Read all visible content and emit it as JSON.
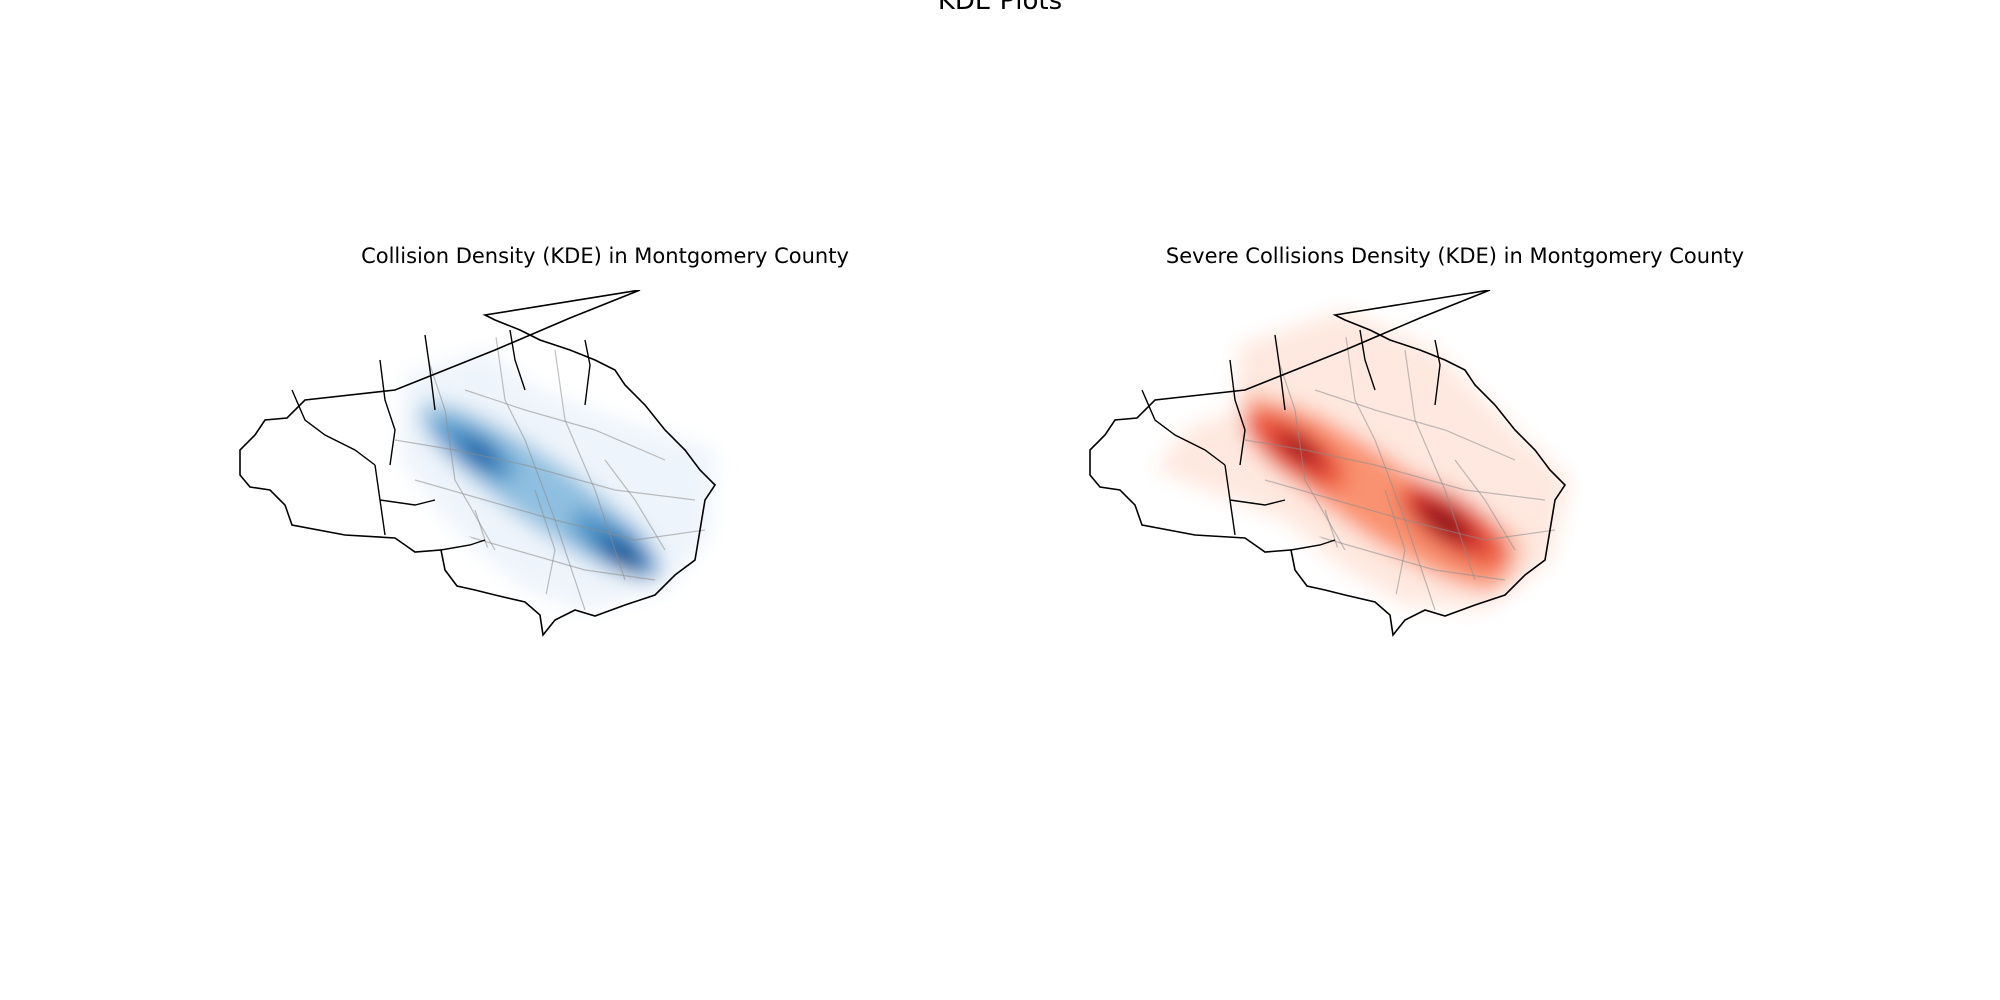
{
  "figure": {
    "suptitle": "KDE Plots"
  },
  "panels": [
    {
      "title": "Collision Density (KDE) in Montgomery County",
      "colormap": "Blues",
      "colors": [
        "#eef4fb",
        "#c9def0",
        "#8fbfe0",
        "#4d94c8",
        "#1e64a8",
        "#0a3a78"
      ]
    },
    {
      "title": "Severe Collisions Density (KDE) in Montgomery County",
      "colormap": "Reds",
      "colors": [
        "#fee8df",
        "#fcc1a8",
        "#f9926f",
        "#ec5a41",
        "#c52128",
        "#7c0a17"
      ]
    }
  ]
}
